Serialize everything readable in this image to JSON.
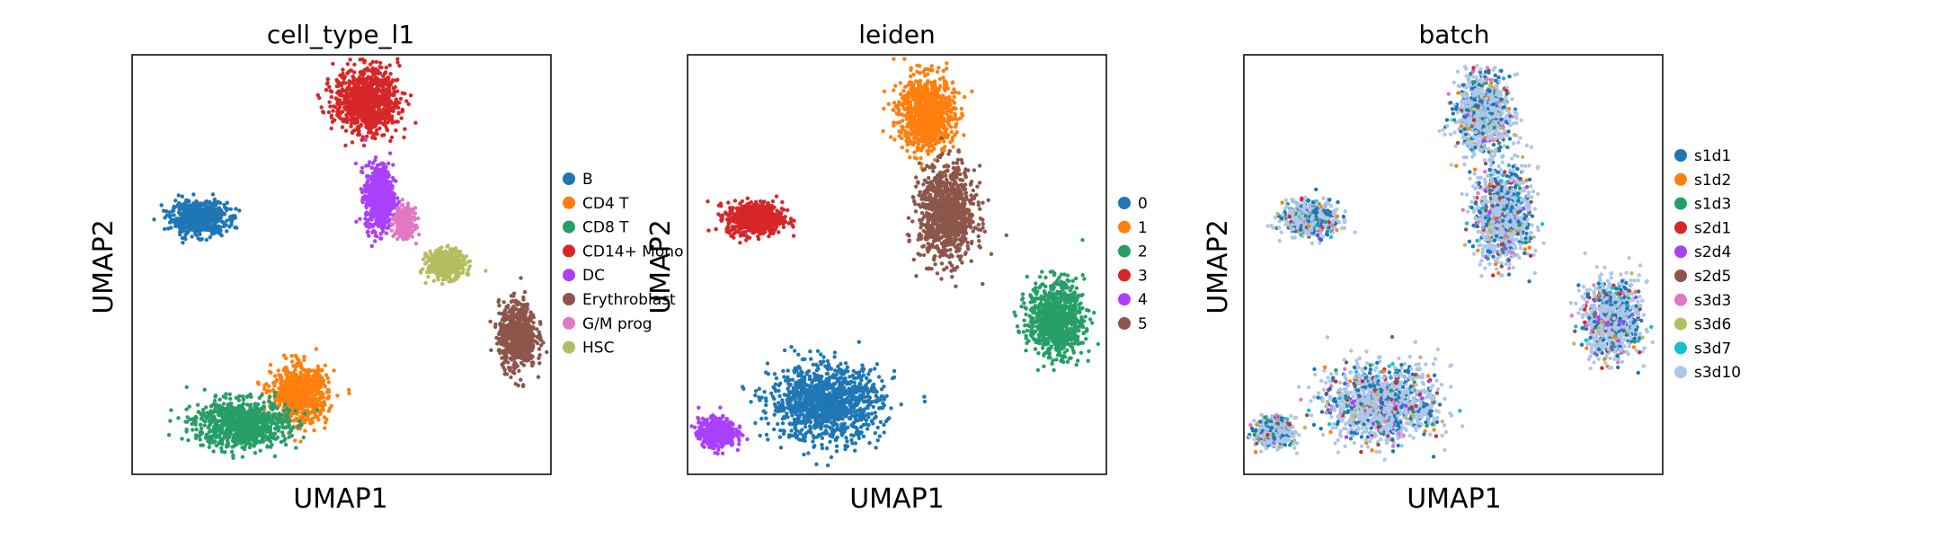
{
  "figure": {
    "panels": [
      {
        "title": "cell_type_l1",
        "xlabel": "UMAP1",
        "ylabel": "UMAP2",
        "legend": [
          {
            "label": "B",
            "color": "#1f77b4"
          },
          {
            "label": "CD4 T",
            "color": "#ff7f0e"
          },
          {
            "label": "CD8 T",
            "color": "#279e68"
          },
          {
            "label": "CD14+ Mono",
            "color": "#d62728"
          },
          {
            "label": "DC",
            "color": "#aa40fc"
          },
          {
            "label": "Erythroblast",
            "color": "#8c564b"
          },
          {
            "label": "G/M prog",
            "color": "#e377c2"
          },
          {
            "label": "HSC",
            "color": "#b5bd61"
          }
        ]
      },
      {
        "title": "leiden",
        "xlabel": "UMAP1",
        "ylabel": "UMAP2",
        "legend": [
          {
            "label": "0",
            "color": "#1f77b4"
          },
          {
            "label": "1",
            "color": "#ff7f0e"
          },
          {
            "label": "2",
            "color": "#279e68"
          },
          {
            "label": "3",
            "color": "#d62728"
          },
          {
            "label": "4",
            "color": "#aa40fc"
          },
          {
            "label": "5",
            "color": "#8c564b"
          }
        ]
      },
      {
        "title": "batch",
        "xlabel": "UMAP1",
        "ylabel": "UMAP2",
        "legend": [
          {
            "label": "s1d1",
            "color": "#1f77b4"
          },
          {
            "label": "s1d2",
            "color": "#ff7f0e"
          },
          {
            "label": "s1d3",
            "color": "#279e68"
          },
          {
            "label": "s2d1",
            "color": "#d62728"
          },
          {
            "label": "s2d4",
            "color": "#aa40fc"
          },
          {
            "label": "s2d5",
            "color": "#8c564b"
          },
          {
            "label": "s3d3",
            "color": "#e377c2"
          },
          {
            "label": "s3d6",
            "color": "#b5bd61"
          },
          {
            "label": "s3d7",
            "color": "#17becf"
          },
          {
            "label": "s3d10",
            "color": "#aec7e8"
          }
        ]
      }
    ]
  },
  "chart_data": [
    {
      "type": "scatter",
      "title": "cell_type_l1",
      "xlabel": "UMAP1",
      "ylabel": "UMAP2",
      "axis_ticks": "none",
      "grid": false,
      "legend_position": "right",
      "clusters": [
        {
          "name": "B",
          "color": "#1f77b4",
          "x": 0.16,
          "y": 0.61,
          "spread_x": 0.06,
          "spread_y": 0.035
        },
        {
          "name": "CD4 T",
          "color": "#ff7f0e",
          "x": 0.4,
          "y": 0.19,
          "spread_x": 0.06,
          "spread_y": 0.06
        },
        {
          "name": "CD8 T",
          "color": "#279e68",
          "x": 0.26,
          "y": 0.12,
          "spread_x": 0.1,
          "spread_y": 0.05
        },
        {
          "name": "CD14+ Mono",
          "color": "#d62728",
          "x": 0.56,
          "y": 0.89,
          "spread_x": 0.07,
          "spread_y": 0.07
        },
        {
          "name": "DC",
          "color": "#aa40fc",
          "x": 0.59,
          "y": 0.66,
          "spread_x": 0.03,
          "spread_y": 0.07
        },
        {
          "name": "Erythroblast",
          "color": "#8c564b",
          "x": 0.92,
          "y": 0.33,
          "spread_x": 0.04,
          "spread_y": 0.07
        },
        {
          "name": "G/M prog",
          "color": "#e377c2",
          "x": 0.65,
          "y": 0.6,
          "spread_x": 0.02,
          "spread_y": 0.03
        },
        {
          "name": "HSC",
          "color": "#b5bd61",
          "x": 0.75,
          "y": 0.5,
          "spread_x": 0.04,
          "spread_y": 0.03
        }
      ]
    },
    {
      "type": "scatter",
      "title": "leiden",
      "xlabel": "UMAP1",
      "ylabel": "UMAP2",
      "axis_ticks": "none",
      "grid": false,
      "legend_position": "right",
      "clusters": [
        {
          "name": "0",
          "color": "#1f77b4",
          "x": 0.33,
          "y": 0.17,
          "spread_x": 0.12,
          "spread_y": 0.08
        },
        {
          "name": "1",
          "color": "#ff7f0e",
          "x": 0.57,
          "y": 0.86,
          "spread_x": 0.06,
          "spread_y": 0.08
        },
        {
          "name": "2",
          "color": "#279e68",
          "x": 0.88,
          "y": 0.37,
          "spread_x": 0.06,
          "spread_y": 0.08
        },
        {
          "name": "3",
          "color": "#d62728",
          "x": 0.16,
          "y": 0.61,
          "spread_x": 0.06,
          "spread_y": 0.035
        },
        {
          "name": "4",
          "color": "#aa40fc",
          "x": 0.07,
          "y": 0.1,
          "spread_x": 0.04,
          "spread_y": 0.03
        },
        {
          "name": "5",
          "color": "#8c564b",
          "x": 0.62,
          "y": 0.62,
          "spread_x": 0.06,
          "spread_y": 0.1
        }
      ]
    },
    {
      "type": "scatter",
      "title": "batch",
      "xlabel": "UMAP1",
      "ylabel": "UMAP2",
      "axis_ticks": "none",
      "grid": false,
      "legend_position": "right",
      "series": [
        {
          "name": "s1d1",
          "color": "#1f77b4"
        },
        {
          "name": "s1d2",
          "color": "#ff7f0e"
        },
        {
          "name": "s1d3",
          "color": "#279e68"
        },
        {
          "name": "s2d1",
          "color": "#d62728"
        },
        {
          "name": "s2d4",
          "color": "#aa40fc"
        },
        {
          "name": "s2d5",
          "color": "#8c564b"
        },
        {
          "name": "s3d3",
          "color": "#e377c2"
        },
        {
          "name": "s3d6",
          "color": "#b5bd61"
        },
        {
          "name": "s3d7",
          "color": "#17becf"
        },
        {
          "name": "s3d10",
          "color": "#aec7e8"
        }
      ]
    }
  ]
}
